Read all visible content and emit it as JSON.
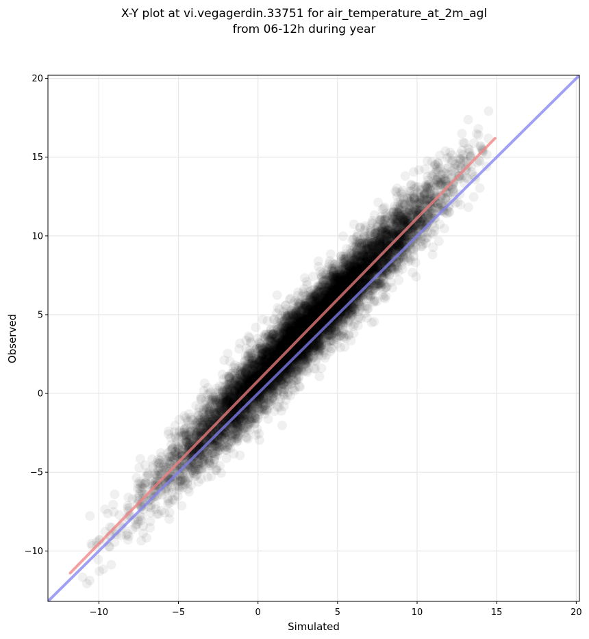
{
  "chart_data": {
    "type": "scatter",
    "title": [
      "X-Y plot at vi.vegagerdin.33751 for air_temperature_at_2m_agl",
      "from 06-12h during year"
    ],
    "xlabel": "Simulated",
    "ylabel": "Observed",
    "xlim": [
      -13.2,
      20.2
    ],
    "ylim": [
      -13.2,
      20.2
    ],
    "x_ticks": [
      -10,
      -5,
      0,
      5,
      10,
      15,
      20
    ],
    "y_ticks": [
      -10,
      -5,
      0,
      5,
      10,
      15,
      20
    ],
    "x_tick_labels": [
      "−10",
      "−5",
      "0",
      "5",
      "10",
      "15",
      "20"
    ],
    "y_tick_labels": [
      "−10",
      "−5",
      "0",
      "5",
      "10",
      "15",
      "20"
    ],
    "grid": true,
    "marker_color": "#000000",
    "marker_alpha": 0.06,
    "fit_line": {
      "color": "#f08080",
      "x": [
        -11.8,
        14.9
      ],
      "y": [
        -11.4,
        16.2
      ]
    },
    "identity_line": {
      "color": "#8080f0",
      "x": [
        -13.2,
        20.2
      ],
      "y": [
        -13.2,
        20.2
      ]
    },
    "point_cloud": {
      "n_points": 9000,
      "x_range": [
        -12,
        14.5
      ],
      "trend": {
        "slope": 1.04,
        "intercept": 0.83
      },
      "spread_sd": 1.1
    }
  }
}
